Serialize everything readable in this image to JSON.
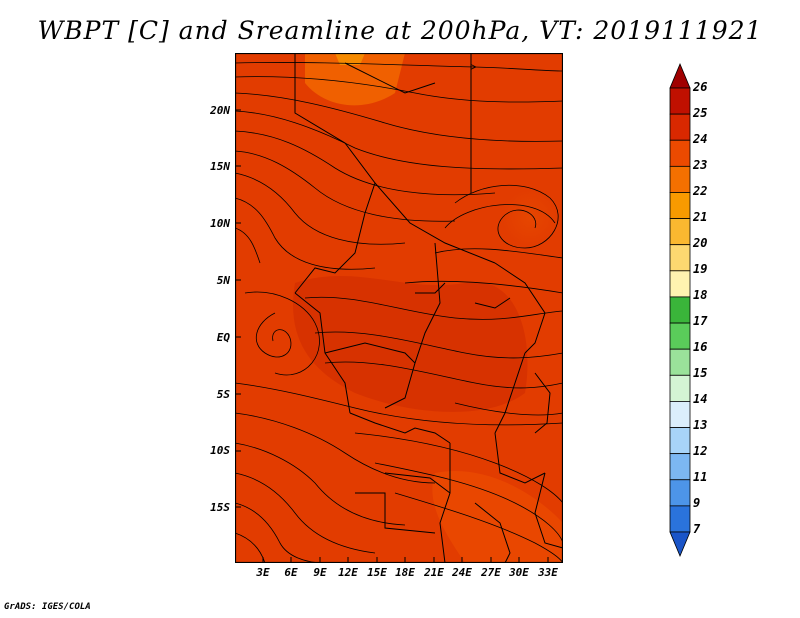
{
  "title": "WBPT [C] and Sreamline at 200hPa, VT: 2019111921",
  "credit": "GrADS: IGES/COLA",
  "lat_ticks": [
    "20N",
    "15N",
    "10N",
    "5N",
    "EQ",
    "5S",
    "10S",
    "15S"
  ],
  "lon_ticks": [
    "3E",
    "6E",
    "9E",
    "12E",
    "15E",
    "18E",
    "21E",
    "24E",
    "27E",
    "30E",
    "33E"
  ],
  "colorbar": {
    "levels": [
      "26",
      "25",
      "24",
      "23",
      "22",
      "21",
      "20",
      "19",
      "18",
      "17",
      "16",
      "15",
      "14",
      "13",
      "12",
      "11",
      "9",
      "7"
    ],
    "colors": [
      "#a00000",
      "#c01000",
      "#d92800",
      "#ec4a00",
      "#f47000",
      "#f89a00",
      "#fab830",
      "#fdd870",
      "#fff3b0",
      "#3ab53a",
      "#5acc5a",
      "#9ae29a",
      "#d4f4d4",
      "#dbeefc",
      "#a8d4f8",
      "#7cb7f2",
      "#4d95e8",
      "#2a73dc",
      "#1a55c8"
    ]
  },
  "map": {
    "lon_range": [
      0,
      34.5
    ],
    "lat_range": [
      -20,
      24.5
    ],
    "fill_colors": {
      "base": "#e23c00",
      "warm": "#d43000",
      "cool": "#ec5200",
      "pale": "#f26a00"
    }
  }
}
